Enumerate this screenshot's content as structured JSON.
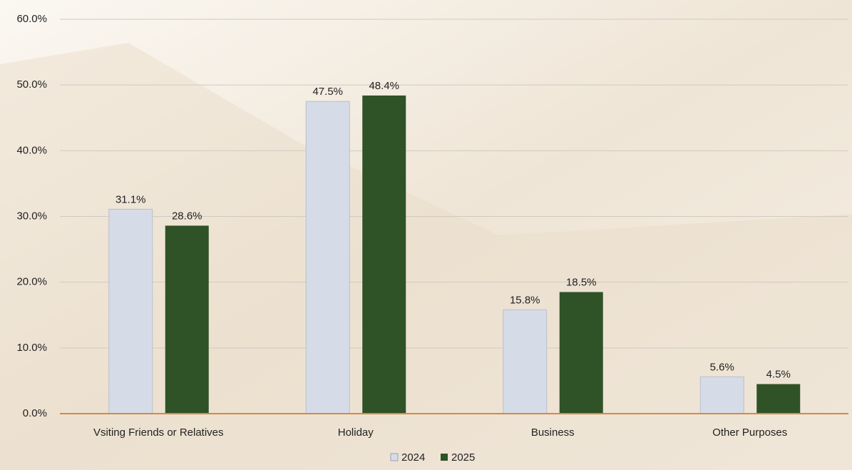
{
  "chart_data": {
    "type": "bar",
    "categories": [
      "Vsiting Friends or Relatives",
      "Holiday",
      "Business",
      "Other Purposes"
    ],
    "series": [
      {
        "name": "2024",
        "color": "#d6dce7",
        "values": [
          31.1,
          47.5,
          15.8,
          5.6
        ],
        "value_labels": [
          "31.1%",
          "47.5%",
          "15.8%",
          "5.6%"
        ]
      },
      {
        "name": "2025",
        "color": "#2f5227",
        "values": [
          28.6,
          48.4,
          18.5,
          4.5
        ],
        "value_labels": [
          "28.6%",
          "48.4%",
          "18.5%",
          "4.5%"
        ]
      }
    ],
    "ylim": [
      0,
      60
    ],
    "yticks": [
      {
        "value": 0,
        "label": "0.0%"
      },
      {
        "value": 10,
        "label": "10.0%"
      },
      {
        "value": 20,
        "label": "20.0%"
      },
      {
        "value": 30,
        "label": "30.0%"
      },
      {
        "value": 40,
        "label": "40.0%"
      },
      {
        "value": 50,
        "label": "50.0%"
      },
      {
        "value": 60,
        "label": "60.0%"
      }
    ],
    "grid": true,
    "legend": "bottom"
  }
}
